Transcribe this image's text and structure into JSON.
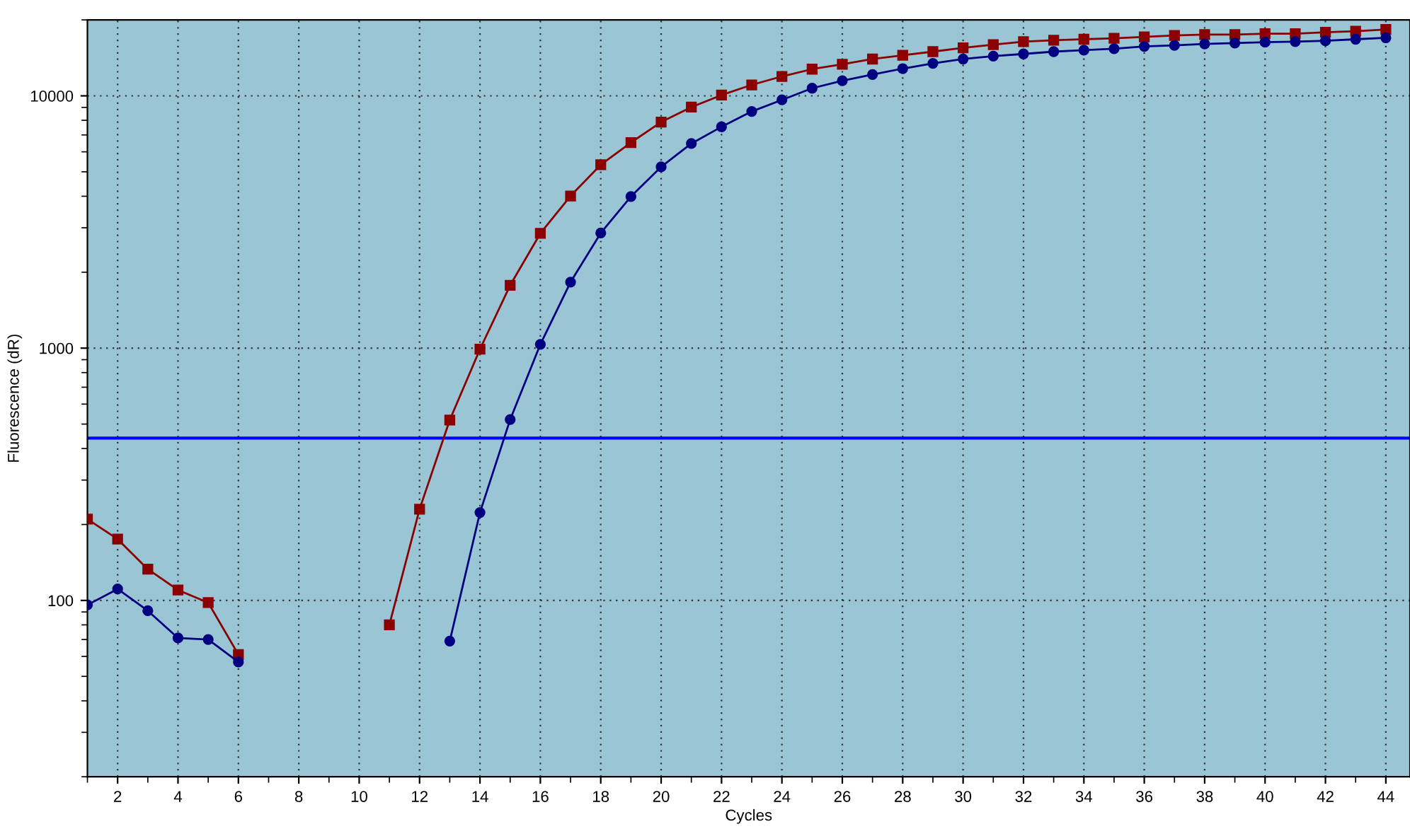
{
  "chart_data": {
    "type": "line",
    "xlabel": "Cycles",
    "ylabel": "Fluorescence (dR)",
    "log": "y",
    "grid": true,
    "legend": false,
    "line_style": "solid",
    "x": [
      1,
      2,
      3,
      4,
      5,
      6,
      7,
      8,
      9,
      10,
      11,
      12,
      13,
      14,
      15,
      16,
      17,
      18,
      19,
      20,
      21,
      22,
      23,
      24,
      25,
      26,
      27,
      28,
      29,
      30,
      31,
      32,
      33,
      34,
      35,
      36,
      37,
      38,
      39,
      40,
      41,
      42,
      43,
      44
    ],
    "xlim": [
      1,
      44.8
    ],
    "xticks": [
      2,
      4,
      6,
      8,
      10,
      12,
      14,
      16,
      18,
      20,
      22,
      24,
      26,
      28,
      30,
      32,
      34,
      36,
      38,
      40,
      42,
      44
    ],
    "ylim": [
      20,
      20000
    ],
    "yticks": [
      100,
      1000,
      10000
    ],
    "series": [
      {
        "color": "#8b0000",
        "marker": "square",
        "values": [
          210,
          175,
          133,
          110,
          98,
          61,
          null,
          null,
          null,
          null,
          80,
          230,
          519,
          990,
          1775,
          2850,
          4010,
          5330,
          6530,
          7870,
          9020,
          10070,
          11050,
          11940,
          12760,
          13330,
          13990,
          14480,
          14970,
          15500,
          15960,
          16400,
          16610,
          16760,
          16910,
          17130,
          17350,
          17500,
          17500,
          17630,
          17630,
          17870,
          18030,
          18330
        ]
      },
      {
        "color": "#000080",
        "marker": "circle",
        "values": [
          96,
          111,
          91,
          71,
          70,
          57,
          null,
          null,
          null,
          null,
          null,
          null,
          69,
          223,
          521,
          1035,
          1827,
          2860,
          3990,
          5230,
          6470,
          7540,
          8670,
          9640,
          10720,
          11480,
          12150,
          12820,
          13450,
          13990,
          14360,
          14660,
          14970,
          15170,
          15380,
          15710,
          15850,
          16060,
          16190,
          16320,
          16400,
          16530,
          16760,
          16980
        ]
      }
    ],
    "ref_lines": [
      {
        "axis": "y",
        "value": 440,
        "color": "#0000ff",
        "line_style": "solid"
      }
    ]
  }
}
